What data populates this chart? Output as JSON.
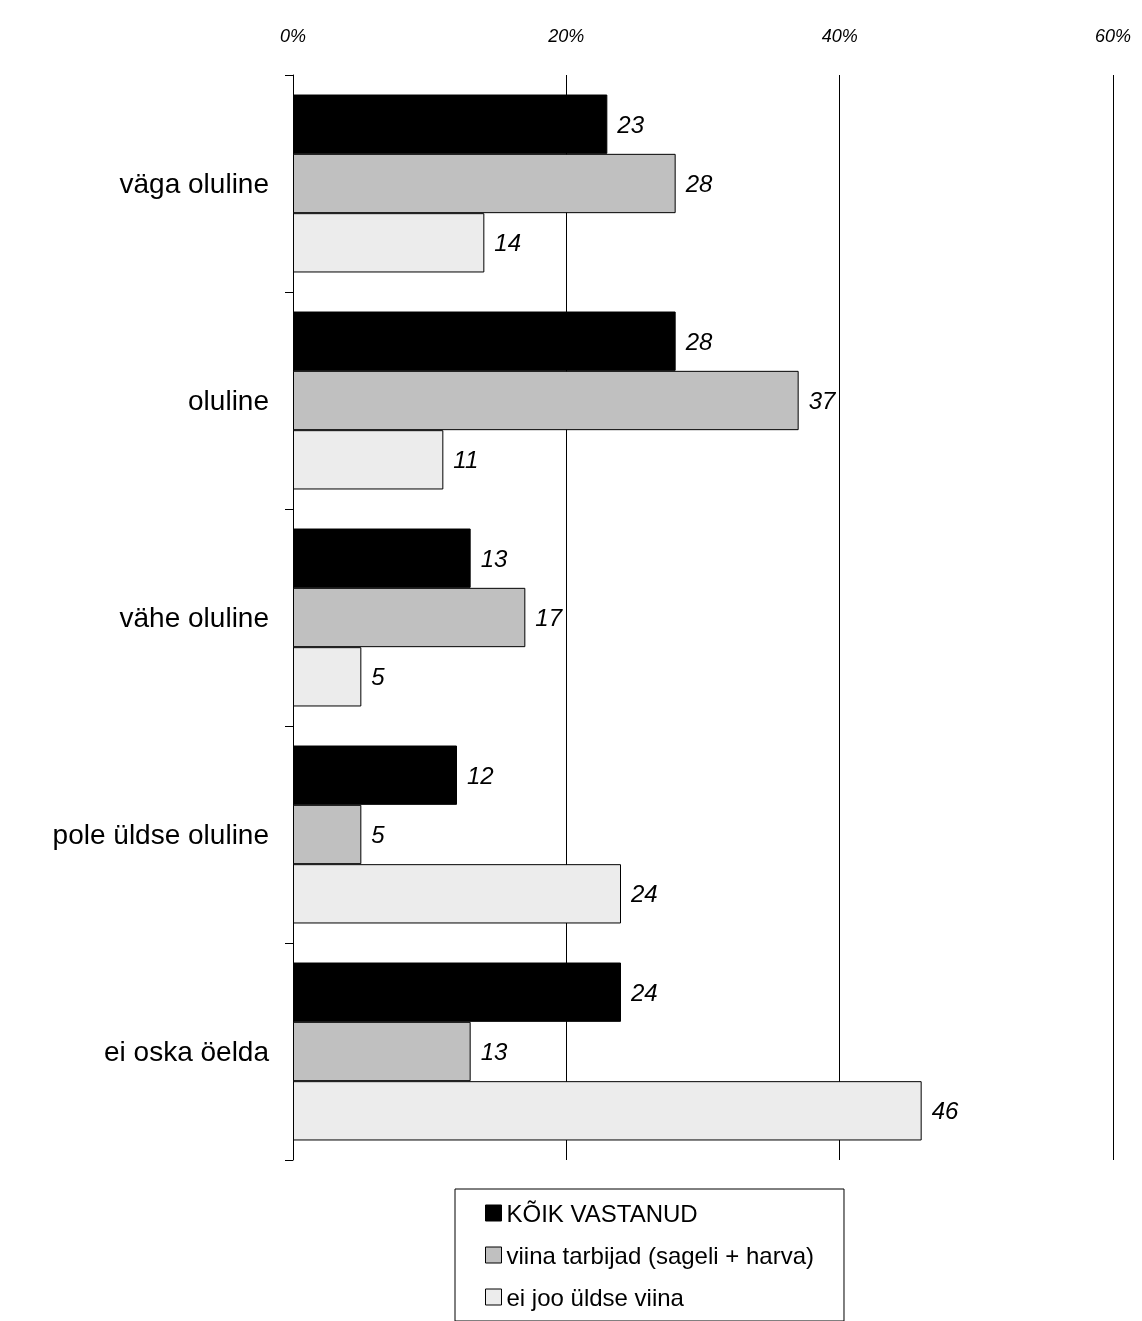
{
  "chart_data": {
    "type": "bar",
    "orientation": "horizontal",
    "categories": [
      "väga oluline",
      "oluline",
      "vähe oluline",
      "pole üldse oluline",
      "ei oska öelda"
    ],
    "series": [
      {
        "name": "KÕIK VASTANUD",
        "color": "#000000",
        "values": [
          23,
          28,
          13,
          12,
          24
        ]
      },
      {
        "name": "viina tarbijad (sageli + harva)",
        "color": "#c0c0c0",
        "values": [
          28,
          37,
          17,
          5,
          13
        ]
      },
      {
        "name": "ei joo üldse viina",
        "color": "#ececec",
        "values": [
          14,
          11,
          5,
          24,
          46
        ]
      }
    ],
    "xlim": [
      0,
      60
    ],
    "xticks": [
      {
        "value": 0,
        "label": "0%"
      },
      {
        "value": 20,
        "label": "20%"
      },
      {
        "value": 40,
        "label": "40%"
      },
      {
        "value": 60,
        "label": "60%"
      }
    ],
    "grid": "x",
    "legend": "bottom",
    "data_labels": true
  }
}
